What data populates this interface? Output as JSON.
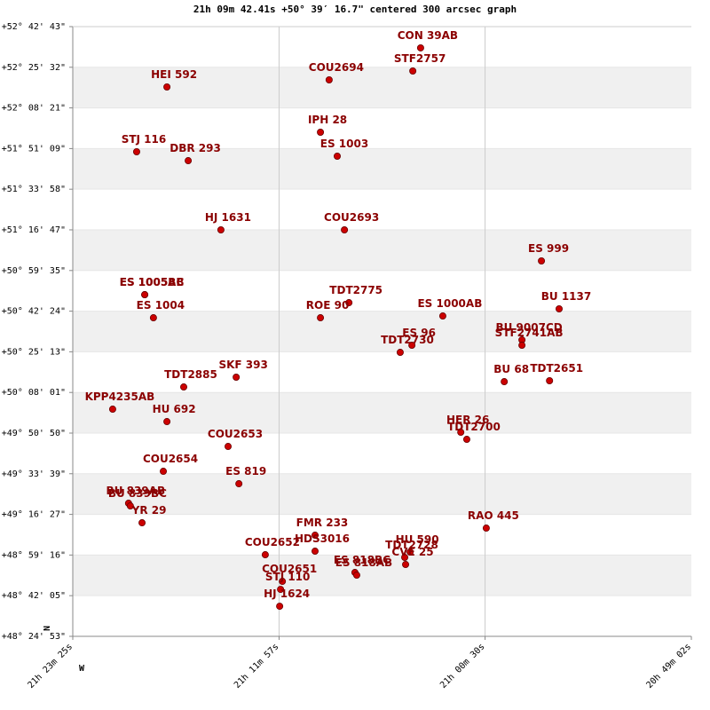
{
  "chart_data": {
    "type": "scatter",
    "title": "21h 09m 42.41s +50° 39′ 16.7\" centered 300 arcsec graph",
    "north_label": "N",
    "west_label": "W",
    "xlim": [
      77005,
      74942
    ],
    "ylim": [
      174293,
      189763
    ],
    "xticks": [
      {
        "value": 77005,
        "label": "21h 23m 25s"
      },
      {
        "value": 76317,
        "label": "21h 11m 57s"
      },
      {
        "value": 75630,
        "label": "21h 00m 30s"
      },
      {
        "value": 74942,
        "label": "20h 49m 02s"
      }
    ],
    "yticks": [
      {
        "value": 174293,
        "label": "+48° 24' 53\""
      },
      {
        "value": 175325,
        "label": "+48° 42' 05\""
      },
      {
        "value": 176356,
        "label": "+48° 59' 16\""
      },
      {
        "value": 177387,
        "label": "+49° 16' 27\""
      },
      {
        "value": 178419,
        "label": "+49° 33' 39\""
      },
      {
        "value": 179450,
        "label": "+49° 50' 50\""
      },
      {
        "value": 180481,
        "label": "+50° 08' 01\""
      },
      {
        "value": 181513,
        "label": "+50° 25' 13\""
      },
      {
        "value": 182544,
        "label": "+50° 42' 24\""
      },
      {
        "value": 183575,
        "label": "+50° 59' 35\""
      },
      {
        "value": 184607,
        "label": "+51° 16' 47\""
      },
      {
        "value": 185638,
        "label": "+51° 33' 58\""
      },
      {
        "value": 186669,
        "label": "+51° 51' 09\""
      },
      {
        "value": 187701,
        "label": "+52° 08' 21\""
      },
      {
        "value": 188732,
        "label": "+52° 25' 32\""
      },
      {
        "value": 189763,
        "label": "+52° 42' 43\""
      }
    ],
    "band_color": "#f0f0f0",
    "point_color": "#cc0000",
    "label_color": "#8b0000",
    "points": [
      {
        "label": "CON  39AB",
        "x": 75845,
        "y": 189223
      },
      {
        "label": "STF2757",
        "x": 75871,
        "y": 188637
      },
      {
        "label": "COU2694",
        "x": 76150,
        "y": 188412
      },
      {
        "label": "HEI 592",
        "x": 76691,
        "y": 188232
      },
      {
        "label": "IPH  28",
        "x": 76179,
        "y": 187083
      },
      {
        "label": "ES 1003",
        "x": 76123,
        "y": 186475
      },
      {
        "label": "STJ 116",
        "x": 76792,
        "y": 186588
      },
      {
        "label": "DBR 293",
        "x": 76620,
        "y": 186362
      },
      {
        "label": "HJ 1631",
        "x": 76511,
        "y": 184606
      },
      {
        "label": "COU2693",
        "x": 76099,
        "y": 184606
      },
      {
        "label": "ES  999",
        "x": 75442,
        "y": 183818
      },
      {
        "label": "ES 1005AB",
        "x": 76765,
        "y": 182962
      },
      {
        "label": "ES 1005BC",
        "x": 76765,
        "y": 182962
      },
      {
        "label": "BU 1137",
        "x": 75383,
        "y": 182602
      },
      {
        "label": "TDT2775",
        "x": 76084,
        "y": 182759
      },
      {
        "label": "ES 1004",
        "x": 76736,
        "y": 182376
      },
      {
        "label": "ROE  90",
        "x": 76179,
        "y": 182376
      },
      {
        "label": "ES 1000AB",
        "x": 75771,
        "y": 182421
      },
      {
        "label": "BU 9007CD",
        "x": 75507,
        "y": 181813
      },
      {
        "label": "STF2741AB",
        "x": 75507,
        "y": 181678
      },
      {
        "label": "ES   96",
        "x": 75874,
        "y": 181678
      },
      {
        "label": "TDT2730",
        "x": 75913,
        "y": 181498
      },
      {
        "label": "BU   68",
        "x": 75566,
        "y": 180755
      },
      {
        "label": "TDT2651",
        "x": 75415,
        "y": 180778
      },
      {
        "label": "SKF 393",
        "x": 76460,
        "y": 180868
      },
      {
        "label": "TDT2885",
        "x": 76635,
        "y": 180620
      },
      {
        "label": "KPP4235AB",
        "x": 76872,
        "y": 180057
      },
      {
        "label": "HU  692",
        "x": 76691,
        "y": 179742
      },
      {
        "label": "HER  26",
        "x": 75711,
        "y": 179471
      },
      {
        "label": "TDT2700",
        "x": 75691,
        "y": 179291
      },
      {
        "label": "COU2653",
        "x": 76487,
        "y": 179111
      },
      {
        "label": "COU2654",
        "x": 76703,
        "y": 178480
      },
      {
        "label": "ES  819",
        "x": 76451,
        "y": 178165
      },
      {
        "label": "BU  839AB",
        "x": 76819,
        "y": 177670
      },
      {
        "label": "BU  839BC",
        "x": 76813,
        "y": 177602
      },
      {
        "label": "YR   29",
        "x": 76774,
        "y": 177174
      },
      {
        "label": "RAO 445",
        "x": 75626,
        "y": 177039
      },
      {
        "label": "FMR 233",
        "x": 76197,
        "y": 176859
      },
      {
        "label": "HDS3016",
        "x": 76197,
        "y": 176454
      },
      {
        "label": "HU  590",
        "x": 75880,
        "y": 176431
      },
      {
        "label": "TDT2728",
        "x": 75898,
        "y": 176296
      },
      {
        "label": "CVE  25",
        "x": 75895,
        "y": 176116
      },
      {
        "label": "ES  818BC",
        "x": 76064,
        "y": 175913
      },
      {
        "label": "ES  818AB",
        "x": 76058,
        "y": 175846
      },
      {
        "label": "COU2652",
        "x": 76363,
        "y": 176364
      },
      {
        "label": "COU2651",
        "x": 76306,
        "y": 175688
      },
      {
        "label": "STJ 110",
        "x": 76312,
        "y": 175485
      },
      {
        "label": "HJ 1624",
        "x": 76315,
        "y": 175057
      }
    ]
  }
}
